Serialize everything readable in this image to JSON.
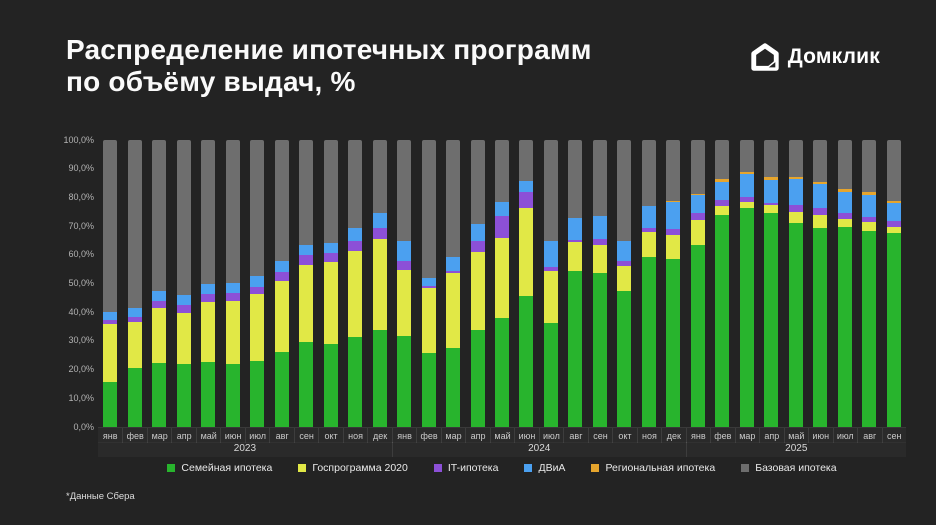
{
  "page": {
    "title_line1": "Распределение ипотечных программ",
    "title_line2": "по объёму выдач, %",
    "logo_text": "Домклик",
    "footnote": "*Данные Сбера"
  },
  "chart_data": {
    "type": "bar",
    "subtype": "stacked-100-percent",
    "title": "Распределение ипотечных программ по объёму выдач, %",
    "ylim": [
      0,
      100
    ],
    "grid": false,
    "legend_position": "bottom-center",
    "y_ticks": [
      "100,0%",
      "90,0%",
      "80,0%",
      "70,0%",
      "60,0%",
      "50,0%",
      "40,0%",
      "30,0%",
      "20,0%",
      "10,0%",
      "0,0%"
    ],
    "series_order": [
      "family",
      "gosprogram",
      "it",
      "dvia",
      "regional",
      "base"
    ],
    "legend": [
      {
        "key": "family",
        "label": "Семейная ипотека",
        "color": "#28B42D"
      },
      {
        "key": "gosprogram",
        "label": "Госпрограмма 2020",
        "color": "#E1E846"
      },
      {
        "key": "it",
        "label": "IT-ипотека",
        "color": "#8C50D7"
      },
      {
        "key": "dvia",
        "label": "ДВиА",
        "color": "#4BA0F0"
      },
      {
        "key": "regional",
        "label": "Региональная ипотека",
        "color": "#E6A52D"
      },
      {
        "key": "base",
        "label": "Базовая ипотека",
        "color": "#6E6E6E"
      }
    ],
    "base_note": "base (Базовая ипотека) = 100 - сумма остальных",
    "year_groups": [
      {
        "year": "2023",
        "count": 12
      },
      {
        "year": "2024",
        "count": 12
      },
      {
        "year": "2025",
        "count": 9
      }
    ],
    "months": [
      {
        "year": 2023,
        "month": "янв",
        "family": 15.8,
        "gosprogram": 20.0,
        "it": 1.5,
        "dvia": 2.9,
        "regional": 0
      },
      {
        "year": 2023,
        "month": "фев",
        "family": 20.4,
        "gosprogram": 16.1,
        "it": 1.7,
        "dvia": 3.4,
        "regional": 0
      },
      {
        "year": 2023,
        "month": "мар",
        "family": 22.2,
        "gosprogram": 19.1,
        "it": 2.7,
        "dvia": 3.5,
        "regional": 0
      },
      {
        "year": 2023,
        "month": "апр",
        "family": 21.8,
        "gosprogram": 18.0,
        "it": 2.7,
        "dvia": 3.5,
        "regional": 0
      },
      {
        "year": 2023,
        "month": "май",
        "family": 22.5,
        "gosprogram": 21.2,
        "it": 2.6,
        "dvia": 3.5,
        "regional": 0
      },
      {
        "year": 2023,
        "month": "июн",
        "family": 22.0,
        "gosprogram": 22.0,
        "it": 2.8,
        "dvia": 3.5,
        "regional": 0
      },
      {
        "year": 2023,
        "month": "июл",
        "family": 23.0,
        "gosprogram": 23.3,
        "it": 2.6,
        "dvia": 3.7,
        "regional": 0
      },
      {
        "year": 2023,
        "month": "авг",
        "family": 26.0,
        "gosprogram": 24.9,
        "it": 3.0,
        "dvia": 3.9,
        "regional": 0
      },
      {
        "year": 2023,
        "month": "сен",
        "family": 29.5,
        "gosprogram": 26.9,
        "it": 3.5,
        "dvia": 3.7,
        "regional": 0
      },
      {
        "year": 2023,
        "month": "окт",
        "family": 28.8,
        "gosprogram": 28.6,
        "it": 3.1,
        "dvia": 3.8,
        "regional": 0
      },
      {
        "year": 2023,
        "month": "ноя",
        "family": 31.5,
        "gosprogram": 29.8,
        "it": 3.5,
        "dvia": 4.7,
        "regional": 0
      },
      {
        "year": 2023,
        "month": "дек",
        "family": 33.8,
        "gosprogram": 31.7,
        "it": 3.7,
        "dvia": 5.3,
        "regional": 0
      },
      {
        "year": 2024,
        "month": "янв",
        "family": 31.8,
        "gosprogram": 22.9,
        "it": 3.0,
        "dvia": 7.2,
        "regional": 0
      },
      {
        "year": 2024,
        "month": "фев",
        "family": 25.7,
        "gosprogram": 22.7,
        "it": 0.6,
        "dvia": 3.0,
        "regional": 0
      },
      {
        "year": 2024,
        "month": "мар",
        "family": 27.6,
        "gosprogram": 26.2,
        "it": 0.5,
        "dvia": 5.0,
        "regional": 0
      },
      {
        "year": 2024,
        "month": "апр",
        "family": 33.8,
        "gosprogram": 27.3,
        "it": 3.8,
        "dvia": 5.7,
        "regional": 0
      },
      {
        "year": 2024,
        "month": "май",
        "family": 37.9,
        "gosprogram": 28.1,
        "it": 7.6,
        "dvia": 4.7,
        "regional": 0
      },
      {
        "year": 2024,
        "month": "июн",
        "family": 45.8,
        "gosprogram": 30.6,
        "it": 5.4,
        "dvia": 3.9,
        "regional": 0
      },
      {
        "year": 2024,
        "month": "июл",
        "family": 36.4,
        "gosprogram": 18.0,
        "it": 1.2,
        "dvia": 9.3,
        "regional": 0
      },
      {
        "year": 2024,
        "month": "авг",
        "family": 54.4,
        "gosprogram": 9.9,
        "it": 0.9,
        "dvia": 7.5,
        "regional": 0
      },
      {
        "year": 2024,
        "month": "сен",
        "family": 53.8,
        "gosprogram": 9.6,
        "it": 2.0,
        "dvia": 8.1,
        "regional": 0
      },
      {
        "year": 2024,
        "month": "окт",
        "family": 47.4,
        "gosprogram": 8.7,
        "it": 1.7,
        "dvia": 7.0,
        "regional": 0
      },
      {
        "year": 2024,
        "month": "ноя",
        "family": 59.4,
        "gosprogram": 8.7,
        "it": 1.3,
        "dvia": 7.6,
        "regional": 0
      },
      {
        "year": 2024,
        "month": "дек",
        "family": 58.5,
        "gosprogram": 8.4,
        "it": 2.0,
        "dvia": 9.6,
        "regional": 0.4
      },
      {
        "year": 2025,
        "month": "янв",
        "family": 63.4,
        "gosprogram": 8.7,
        "it": 2.6,
        "dvia": 6.1,
        "regional": 0.4
      },
      {
        "year": 2025,
        "month": "фев",
        "family": 73.9,
        "gosprogram": 3.1,
        "it": 2.1,
        "dvia": 6.4,
        "regional": 0.8
      },
      {
        "year": 2025,
        "month": "мар",
        "family": 76.4,
        "gosprogram": 2.1,
        "it": 1.8,
        "dvia": 7.7,
        "regional": 1.0
      },
      {
        "year": 2025,
        "month": "апр",
        "family": 74.4,
        "gosprogram": 3.0,
        "it": 0.6,
        "dvia": 8.1,
        "regional": 1.1
      },
      {
        "year": 2025,
        "month": "май",
        "family": 71.0,
        "gosprogram": 4.0,
        "it": 2.4,
        "dvia": 8.9,
        "regional": 0.9
      },
      {
        "year": 2025,
        "month": "июн",
        "family": 69.5,
        "gosprogram": 4.4,
        "it": 2.5,
        "dvia": 8.2,
        "regional": 0.9
      },
      {
        "year": 2025,
        "month": "июл",
        "family": 69.8,
        "gosprogram": 2.7,
        "it": 2.2,
        "dvia": 7.3,
        "regional": 1.1
      },
      {
        "year": 2025,
        "month": "авг",
        "family": 68.3,
        "gosprogram": 3.0,
        "it": 2.0,
        "dvia": 7.5,
        "regional": 1.0
      },
      {
        "year": 2025,
        "month": "сен",
        "family": 67.5,
        "gosprogram": 2.3,
        "it": 2.0,
        "dvia": 6.1,
        "regional": 1.0
      }
    ]
  }
}
